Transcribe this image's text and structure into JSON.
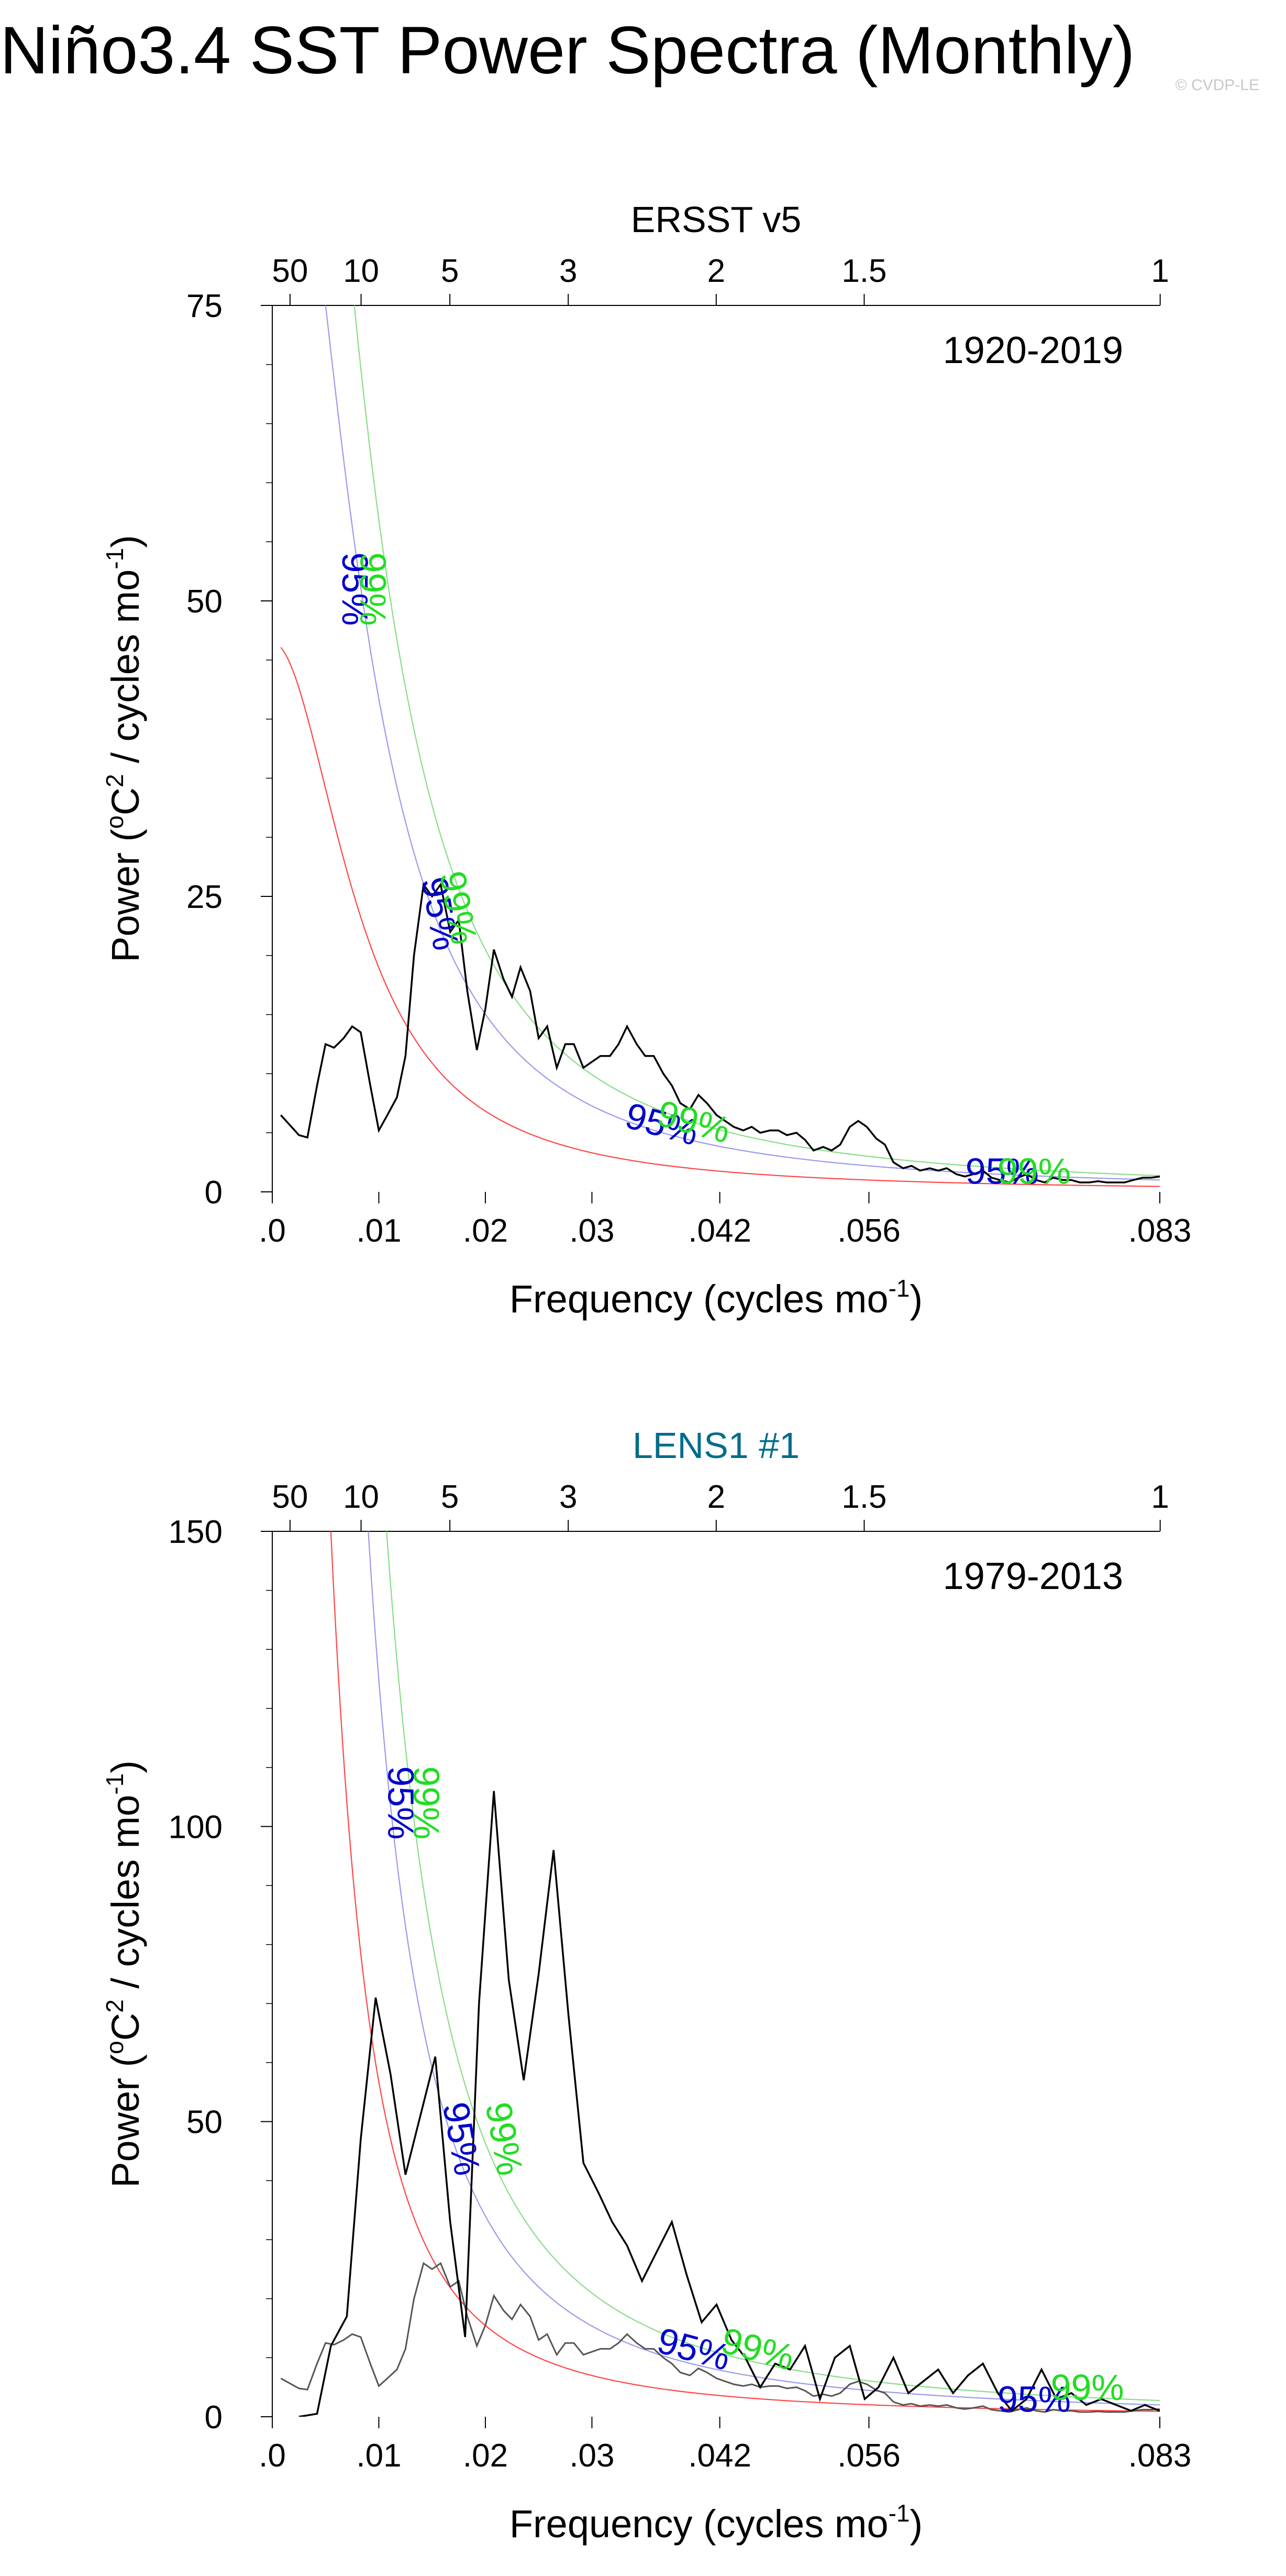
{
  "page": {
    "title": "Niño3.4 SST Power Spectra (Monthly)",
    "watermark": "© CVDP-LE"
  },
  "colors": {
    "spectrum": "#000000",
    "spectrum_secondary": "#555555",
    "red_noise": "#ff4444",
    "conf95": "#0000cc",
    "conf99": "#22dd22",
    "conf95_line": "#9999ee",
    "conf99_line": "#88dd88",
    "subtitle_blue": "#006c8c",
    "axis": "#000000"
  },
  "chart_data": [
    {
      "type": "line",
      "top_title": "ERSST v5",
      "top_title_color": "#000000",
      "period_label": "1920-2019",
      "xlabel": "Frequency (cycles mo",
      "xlabel_sup": "-1",
      "xlabel_end": ")",
      "ylabel_pre": "Power (",
      "ylabel_o": "o",
      "ylabel_C": "C",
      "ylabel_2": "2",
      "ylabel_mid": " / cycles mo",
      "ylabel_sup": "-1",
      "ylabel_end": ")",
      "xlim": [
        0,
        0.0833
      ],
      "ylim": [
        0,
        75
      ],
      "x_ticks": [
        {
          "v": 0.0,
          "label": ".0"
        },
        {
          "v": 0.01,
          "label": ".01"
        },
        {
          "v": 0.02,
          "label": ".02"
        },
        {
          "v": 0.03,
          "label": ".03"
        },
        {
          "v": 0.042,
          "label": ".042"
        },
        {
          "v": 0.056,
          "label": ".056"
        },
        {
          "v": 0.0833,
          "label": ".083"
        }
      ],
      "y_ticks": [
        {
          "v": 0,
          "label": "0"
        },
        {
          "v": 25,
          "label": "25"
        },
        {
          "v": 50,
          "label": "50"
        },
        {
          "v": 75,
          "label": "75"
        }
      ],
      "y_minor": [
        5,
        10,
        15,
        20,
        30,
        35,
        40,
        45,
        55,
        60,
        65,
        70
      ],
      "top_ticks": [
        {
          "period_years": 50,
          "label": "50"
        },
        {
          "period_years": 10,
          "label": "10"
        },
        {
          "period_years": 5,
          "label": "5"
        },
        {
          "period_years": 3,
          "label": "3"
        },
        {
          "period_years": 2,
          "label": "2"
        },
        {
          "period_years": 1.5,
          "label": "1.5"
        },
        {
          "period_years": 1,
          "label": "1"
        }
      ],
      "red_noise": {
        "s0": 46.5,
        "fc": 0.0083
      },
      "conf95_factor": 2.2,
      "conf99_factor": 3.0,
      "conf_labels": [
        {
          "text": "95%",
          "x": 0.0075,
          "y": 51,
          "rot": 90,
          "which": "95"
        },
        {
          "text": "99%",
          "x": 0.0092,
          "y": 51,
          "rot": 90,
          "which": "99"
        },
        {
          "text": "95%",
          "x": 0.0155,
          "y": 23.5,
          "rot": 80,
          "which": "95"
        },
        {
          "text": "99%",
          "x": 0.0172,
          "y": 24,
          "rot": 80,
          "which": "99"
        },
        {
          "text": "95%",
          "x": 0.0365,
          "y": 5.5,
          "rot": 15,
          "which": "95"
        },
        {
          "text": "99%",
          "x": 0.0395,
          "y": 5.7,
          "rot": 15,
          "which": "99"
        },
        {
          "text": "95%",
          "x": 0.0685,
          "y": 1.5,
          "rot": 0,
          "which": "95"
        },
        {
          "text": "99%",
          "x": 0.0715,
          "y": 1.5,
          "rot": 0,
          "which": "99"
        }
      ],
      "series": [
        {
          "name": "ERSST v5 spectrum",
          "color": "#000000",
          "x": [
            0.0008,
            0.0025,
            0.0033,
            0.0042,
            0.005,
            0.0058,
            0.0067,
            0.0075,
            0.0083,
            0.0092,
            0.01,
            0.0108,
            0.0117,
            0.0125,
            0.0133,
            0.0142,
            0.015,
            0.0158,
            0.0167,
            0.0175,
            0.0183,
            0.0192,
            0.02,
            0.0208,
            0.0217,
            0.0225,
            0.0233,
            0.0242,
            0.025,
            0.0258,
            0.0267,
            0.0275,
            0.0283,
            0.0292,
            0.03,
            0.0308,
            0.0317,
            0.0325,
            0.0333,
            0.0342,
            0.035,
            0.0358,
            0.0367,
            0.0375,
            0.0383,
            0.0392,
            0.04,
            0.0408,
            0.0417,
            0.0425,
            0.0433,
            0.0442,
            0.045,
            0.0458,
            0.0467,
            0.0475,
            0.0483,
            0.0492,
            0.05,
            0.0508,
            0.0517,
            0.0525,
            0.0533,
            0.0542,
            0.055,
            0.0558,
            0.0567,
            0.0575,
            0.0583,
            0.0592,
            0.06,
            0.0608,
            0.0617,
            0.0625,
            0.0633,
            0.0642,
            0.065,
            0.0658,
            0.0667,
            0.0675,
            0.0683,
            0.0692,
            0.07,
            0.0708,
            0.0717,
            0.0725,
            0.0733,
            0.0742,
            0.075,
            0.0758,
            0.0767,
            0.0775,
            0.0783,
            0.0792,
            0.08,
            0.0808,
            0.0817,
            0.0825,
            0.0833
          ],
          "values": [
            6.5,
            4.8,
            4.6,
            9,
            12.5,
            12.2,
            13,
            14,
            13.5,
            9,
            5.2,
            6.5,
            8,
            11.5,
            20,
            26,
            25,
            26,
            22,
            23,
            17,
            12,
            15.5,
            20.5,
            18,
            16.5,
            19,
            17,
            13,
            14,
            10.5,
            12.5,
            12.5,
            10.5,
            11,
            11.5,
            11.5,
            12.5,
            14,
            12.5,
            11.5,
            11.5,
            10,
            9,
            7.5,
            7,
            8.2,
            7.5,
            6.5,
            6,
            5.5,
            5.2,
            5.5,
            5,
            5.2,
            5.2,
            4.8,
            5,
            4.4,
            3.5,
            3.8,
            3.5,
            4,
            5.5,
            6,
            5.5,
            4.5,
            4,
            2.5,
            2,
            2.2,
            1.8,
            2,
            1.8,
            2,
            1.5,
            1.3,
            1.5,
            1.8,
            1.2,
            1,
            0.8,
            1.2,
            1.5,
            1,
            0.8,
            1.2,
            1,
            1,
            0.8,
            0.8,
            0.9,
            0.8,
            0.8,
            0.8,
            1,
            1.2,
            1.2,
            1.3
          ]
        }
      ]
    },
    {
      "type": "line",
      "top_title": "LENS1 #1",
      "top_title_color": "#006c8c",
      "period_label": "1979-2013",
      "xlabel": "Frequency (cycles mo",
      "xlabel_sup": "-1",
      "xlabel_end": ")",
      "ylabel_pre": "Power (",
      "ylabel_o": "o",
      "ylabel_C": "C",
      "ylabel_2": "2",
      "ylabel_mid": " / cycles mo",
      "ylabel_sup": "-1",
      "ylabel_end": ")",
      "xlim": [
        0,
        0.0833
      ],
      "ylim": [
        0,
        150
      ],
      "x_ticks": [
        {
          "v": 0.0,
          "label": ".0"
        },
        {
          "v": 0.01,
          "label": ".01"
        },
        {
          "v": 0.02,
          "label": ".02"
        },
        {
          "v": 0.03,
          "label": ".03"
        },
        {
          "v": 0.042,
          "label": ".042"
        },
        {
          "v": 0.056,
          "label": ".056"
        },
        {
          "v": 0.0833,
          "label": ".083"
        }
      ],
      "y_ticks": [
        {
          "v": 0,
          "label": "0"
        },
        {
          "v": 50,
          "label": "50"
        },
        {
          "v": 100,
          "label": "100"
        },
        {
          "v": 150,
          "label": "150"
        }
      ],
      "y_minor": [
        10,
        20,
        30,
        40,
        60,
        70,
        80,
        90,
        110,
        120,
        130,
        140
      ],
      "top_ticks": [
        {
          "period_years": 50,
          "label": "50"
        },
        {
          "period_years": 10,
          "label": "10"
        },
        {
          "period_years": 5,
          "label": "5"
        },
        {
          "period_years": 3,
          "label": "3"
        },
        {
          "period_years": 2,
          "label": "2"
        },
        {
          "period_years": 1.5,
          "label": "1.5"
        },
        {
          "period_years": 1,
          "label": "1"
        }
      ],
      "red_noise": {
        "s0": 520,
        "fc": 0.0035
      },
      "conf95_factor": 2.2,
      "conf99_factor": 3.0,
      "conf_labels": [
        {
          "text": "95%",
          "x": 0.0118,
          "y": 104,
          "rot": 90,
          "which": "95"
        },
        {
          "text": "99%",
          "x": 0.0142,
          "y": 104,
          "rot": 90,
          "which": "99"
        },
        {
          "text": "95%",
          "x": 0.0175,
          "y": 47,
          "rot": 80,
          "which": "95"
        },
        {
          "text": "99%",
          "x": 0.0215,
          "y": 47,
          "rot": 80,
          "which": "99"
        },
        {
          "text": "95%",
          "x": 0.0395,
          "y": 11,
          "rot": 15,
          "which": "95"
        },
        {
          "text": "99%",
          "x": 0.0455,
          "y": 11,
          "rot": 15,
          "which": "99"
        },
        {
          "text": "95%",
          "x": 0.0715,
          "y": 2.5,
          "rot": 0,
          "which": "95"
        },
        {
          "text": "99%",
          "x": 0.0765,
          "y": 4.5,
          "rot": 0,
          "which": "99"
        }
      ],
      "series": [
        {
          "name": "LENS1 #1 spectrum",
          "color": "#000000",
          "x": [
            0.0025,
            0.0042,
            0.0055,
            0.007,
            0.0083,
            0.0097,
            0.0111,
            0.0125,
            0.0139,
            0.0153,
            0.0167,
            0.0181,
            0.0194,
            0.0208,
            0.0222,
            0.0236,
            0.025,
            0.0264,
            0.0278,
            0.0292,
            0.0306,
            0.0319,
            0.0333,
            0.0347,
            0.0361,
            0.0375,
            0.0389,
            0.0403,
            0.0417,
            0.0431,
            0.0444,
            0.0458,
            0.0472,
            0.0486,
            0.05,
            0.0514,
            0.0528,
            0.0542,
            0.0556,
            0.0569,
            0.0583,
            0.0597,
            0.0611,
            0.0625,
            0.0639,
            0.0653,
            0.0667,
            0.0681,
            0.0694,
            0.0708,
            0.0722,
            0.0736,
            0.075,
            0.0764,
            0.0778,
            0.0792,
            0.0806,
            0.0819,
            0.0833
          ],
          "values": [
            0,
            0.5,
            12,
            17,
            47,
            71,
            58,
            41,
            51,
            61,
            33,
            13.5,
            70,
            106,
            74,
            57,
            75,
            96,
            68,
            43,
            38,
            33,
            29,
            23,
            28,
            33,
            24,
            16,
            19,
            13,
            10,
            5,
            9,
            8,
            12,
            3,
            10,
            12,
            3,
            5,
            10,
            4,
            6,
            8,
            4,
            7,
            9,
            4,
            1,
            3,
            8,
            3,
            4,
            2,
            3,
            2,
            1,
            2,
            1
          ]
        },
        {
          "name": "ERSST v5 reference",
          "color": "#555555",
          "x": [
            0.0008,
            0.0025,
            0.0033,
            0.0042,
            0.005,
            0.0058,
            0.0067,
            0.0075,
            0.0083,
            0.0092,
            0.01,
            0.0108,
            0.0117,
            0.0125,
            0.0133,
            0.0142,
            0.015,
            0.0158,
            0.0167,
            0.0175,
            0.0183,
            0.0192,
            0.02,
            0.0208,
            0.0217,
            0.0225,
            0.0233,
            0.0242,
            0.025,
            0.0258,
            0.0267,
            0.0275,
            0.0283,
            0.0292,
            0.03,
            0.0308,
            0.0317,
            0.0325,
            0.0333,
            0.0342,
            0.035,
            0.0358,
            0.0367,
            0.0375,
            0.0383,
            0.0392,
            0.04,
            0.0408,
            0.0417,
            0.0425,
            0.0433,
            0.0442,
            0.045,
            0.0458,
            0.0467,
            0.0475,
            0.0483,
            0.0492,
            0.05,
            0.0508,
            0.0517,
            0.0525,
            0.0533,
            0.0542,
            0.055,
            0.0558,
            0.0567,
            0.0575,
            0.0583,
            0.0592,
            0.06,
            0.0608,
            0.0617,
            0.0625,
            0.0633,
            0.0642,
            0.065,
            0.0658,
            0.0667,
            0.0675,
            0.0683,
            0.0692,
            0.07,
            0.0708,
            0.0717,
            0.0725,
            0.0733,
            0.0742,
            0.075,
            0.0758,
            0.0767,
            0.0775,
            0.0783,
            0.0792,
            0.08,
            0.0808,
            0.0817,
            0.0825,
            0.0833
          ],
          "values": [
            6.5,
            4.8,
            4.6,
            9,
            12.5,
            12.2,
            13,
            14,
            13.5,
            9,
            5.2,
            6.5,
            8,
            11.5,
            20,
            26,
            25,
            26,
            22,
            23,
            17,
            12,
            15.5,
            20.5,
            18,
            16.5,
            19,
            17,
            13,
            14,
            10.5,
            12.5,
            12.5,
            10.5,
            11,
            11.5,
            11.5,
            12.5,
            14,
            12.5,
            11.5,
            11.5,
            10,
            9,
            7.5,
            7,
            8.2,
            7.5,
            6.5,
            6,
            5.5,
            5.2,
            5.5,
            5,
            5.2,
            5.2,
            4.8,
            5,
            4.4,
            3.5,
            3.8,
            3.5,
            4,
            5.5,
            6,
            5.5,
            4.5,
            4,
            2.5,
            2,
            2.2,
            1.8,
            2,
            1.8,
            2,
            1.5,
            1.3,
            1.5,
            1.8,
            1.2,
            1,
            0.8,
            1.2,
            1.5,
            1,
            0.8,
            1.2,
            1,
            1,
            0.8,
            0.8,
            0.9,
            0.8,
            0.8,
            0.8,
            1,
            1.2,
            1.2,
            1.3
          ]
        }
      ]
    }
  ]
}
